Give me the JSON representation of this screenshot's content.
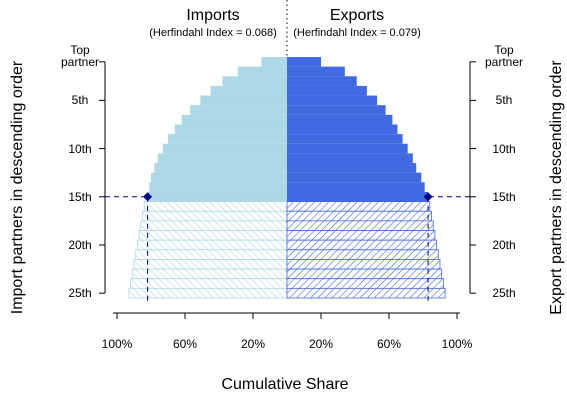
{
  "chart_data": [
    {
      "type": "bar",
      "side": "left",
      "title": "Imports",
      "subtitle": "(Herfindahl Index = 0.068)",
      "ylabel": "Import partners in descending order",
      "xlabel": "Cumulative Share",
      "x": [
        1,
        2,
        3,
        4,
        5,
        6,
        7,
        8,
        9,
        10,
        11,
        12,
        13,
        14,
        15,
        16,
        17,
        18,
        19,
        20,
        21,
        22,
        23,
        24,
        25
      ],
      "values": [
        15,
        29,
        38,
        45,
        51,
        57,
        62,
        66,
        70,
        73,
        76,
        78,
        80,
        81,
        82,
        84,
        85,
        86,
        87,
        88,
        89,
        90,
        91,
        92,
        93
      ],
      "color": "#add8e6",
      "xlim": [
        100,
        0
      ],
      "xticks": [
        {
          "value": 100,
          "label": "100%"
        },
        {
          "value": 60,
          "label": "60%"
        },
        {
          "value": 20,
          "label": "20%"
        }
      ],
      "ylim": [
        25.5,
        0.5
      ],
      "yticks": [
        {
          "value": 1,
          "label": "Top partner"
        },
        {
          "value": 5,
          "label": "5th"
        },
        {
          "value": 10,
          "label": "10th"
        },
        {
          "value": 15,
          "label": "15th"
        },
        {
          "value": 20,
          "label": "20th"
        },
        {
          "value": 25,
          "label": "25th"
        }
      ],
      "reference_rank": 15,
      "reference_color": "#000080"
    },
    {
      "type": "bar",
      "side": "right",
      "title": "Exports",
      "subtitle": "(Herfindahl Index = 0.079)",
      "ylabel": "Export partners in descending order",
      "x": [
        1,
        2,
        3,
        4,
        5,
        6,
        7,
        8,
        9,
        10,
        11,
        12,
        13,
        14,
        15,
        16,
        17,
        18,
        19,
        20,
        21,
        22,
        23,
        24,
        25
      ],
      "values": [
        20,
        34,
        41,
        47,
        53,
        58,
        62,
        65,
        68,
        71,
        74,
        76,
        79,
        81,
        83,
        84,
        85,
        86,
        87,
        88,
        89,
        90,
        91,
        92,
        93
      ],
      "color": "#4169e1",
      "xlim": [
        0,
        100
      ],
      "xticks": [
        {
          "value": 20,
          "label": "20%"
        },
        {
          "value": 60,
          "label": "60%"
        },
        {
          "value": 100,
          "label": "100%"
        }
      ],
      "ylim": [
        25.5,
        0.5
      ],
      "yticks": [
        {
          "value": 1,
          "label": "Top partner"
        },
        {
          "value": 5,
          "label": "5th"
        },
        {
          "value": 10,
          "label": "10th"
        },
        {
          "value": 15,
          "label": "15th"
        },
        {
          "value": 20,
          "label": "20th"
        },
        {
          "value": 25,
          "label": "25th"
        }
      ],
      "reference_rank": 15,
      "reference_color": "#000080"
    }
  ]
}
